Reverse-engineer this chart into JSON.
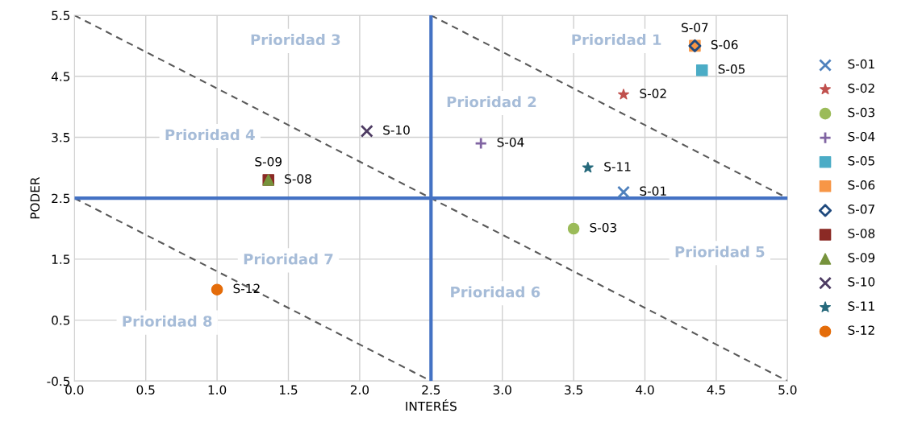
{
  "chart_data": {
    "type": "scatter",
    "xlabel": "INTERÉS",
    "ylabel": "PODER",
    "xlim": [
      0,
      5
    ],
    "ylim": [
      -0.5,
      5.5
    ],
    "xticks": [
      {
        "value": 0,
        "label": "0.0"
      },
      {
        "value": 0.5,
        "label": "0.5"
      },
      {
        "value": 1,
        "label": "1.0"
      },
      {
        "value": 1.5,
        "label": "1.5"
      },
      {
        "value": 2,
        "label": "2.0"
      },
      {
        "value": 2.5,
        "label": "2.5"
      },
      {
        "value": 3,
        "label": "3.0"
      },
      {
        "value": 3.5,
        "label": "3.5"
      },
      {
        "value": 4,
        "label": "4.0"
      },
      {
        "value": 4.5,
        "label": "4.5"
      },
      {
        "value": 5,
        "label": "5.0"
      }
    ],
    "yticks": [
      -0.5,
      0.5,
      1.5,
      2.5,
      3.5,
      4.5,
      5.5
    ],
    "grid": true,
    "legend": "right",
    "series": [
      {
        "name": "S-01",
        "color": "#4f81bd",
        "marker": "x",
        "x": [
          3.85
        ],
        "values": [
          2.6
        ]
      },
      {
        "name": "S-02",
        "color": "#c0504d",
        "marker": "star",
        "x": [
          3.85
        ],
        "values": [
          4.2
        ]
      },
      {
        "name": "S-03",
        "color": "#9bbb59",
        "marker": "circle",
        "x": [
          3.5
        ],
        "values": [
          2.0
        ]
      },
      {
        "name": "S-04",
        "color": "#8064a2",
        "marker": "plus",
        "x": [
          2.85
        ],
        "values": [
          3.4
        ]
      },
      {
        "name": "S-05",
        "color": "#4bacc6",
        "marker": "square",
        "x": [
          4.4
        ],
        "values": [
          4.6
        ]
      },
      {
        "name": "S-06",
        "color": "#f79646",
        "marker": "square",
        "x": [
          4.35
        ],
        "values": [
          5.0
        ]
      },
      {
        "name": "S-07",
        "color": "#1f497d",
        "marker": "diamond",
        "x": [
          4.35
        ],
        "values": [
          5.0
        ]
      },
      {
        "name": "S-08",
        "color": "#8b2a25",
        "marker": "square",
        "x": [
          1.36
        ],
        "values": [
          2.8
        ]
      },
      {
        "name": "S-09",
        "color": "#77933c",
        "marker": "triangle",
        "x": [
          1.36
        ],
        "values": [
          2.8
        ]
      },
      {
        "name": "S-10",
        "color": "#4d3b62",
        "marker": "x",
        "x": [
          2.05
        ],
        "values": [
          3.6
        ]
      },
      {
        "name": "S-11",
        "color": "#276a7c",
        "marker": "star",
        "x": [
          3.6
        ],
        "values": [
          3.0
        ]
      },
      {
        "name": "S-12",
        "color": "#e46c0a",
        "marker": "circle",
        "x": [
          1.0
        ],
        "values": [
          1.0
        ]
      },
      {
        "type": "line",
        "color": "#595959",
        "line_style": "dashed",
        "x": [
          0,
          5
        ],
        "values": [
          5.5,
          -0.5
        ]
      },
      {
        "type": "line",
        "color": "#595959",
        "line_style": "dashed",
        "x": [
          2.5,
          5
        ],
        "values": [
          5.5,
          2.5
        ]
      },
      {
        "type": "line",
        "color": "#595959",
        "line_style": "dashed",
        "x": [
          0,
          2.5
        ],
        "values": [
          2.5,
          -0.5
        ]
      },
      {
        "type": "line",
        "color": "#4472c4",
        "line_style": "solid",
        "x": [
          2.5,
          2.5
        ],
        "values": [
          -0.5,
          5.5
        ]
      },
      {
        "type": "line",
        "color": "#4472c4",
        "line_style": "solid",
        "x": [
          0,
          5
        ],
        "values": [
          2.5,
          2.5
        ]
      }
    ],
    "annotations": [
      "Prioridad 1",
      "Prioridad 2",
      "Prioridad 3",
      "Prioridad 4",
      "Prioridad 5",
      "Prioridad 6",
      "Prioridad 7",
      "Prioridad 8"
    ]
  }
}
